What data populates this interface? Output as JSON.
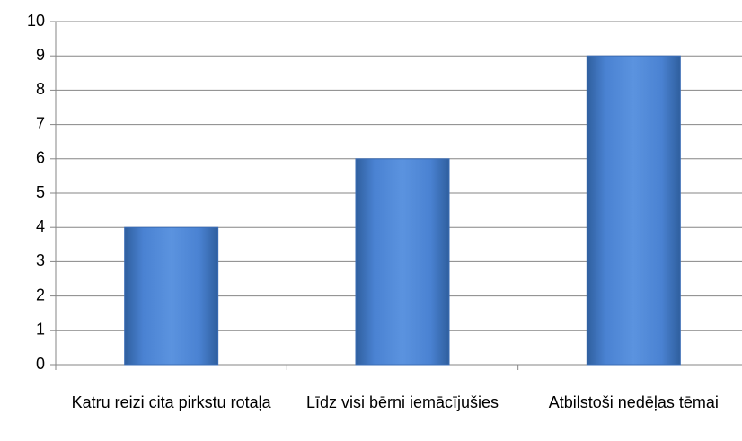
{
  "chart_data": {
    "type": "bar",
    "categories": [
      "Katru reizi cita pirkstu rotaļa",
      "Līdz visi bērni iemācījušies",
      "Atbilstoši nedēļas tēmai"
    ],
    "values": [
      4,
      6,
      9
    ],
    "color": "#4a7fd0",
    "ylim": [
      0,
      10
    ],
    "yticks": [
      0,
      1,
      2,
      3,
      4,
      5,
      6,
      7,
      8,
      9,
      10
    ],
    "grid": true
  }
}
